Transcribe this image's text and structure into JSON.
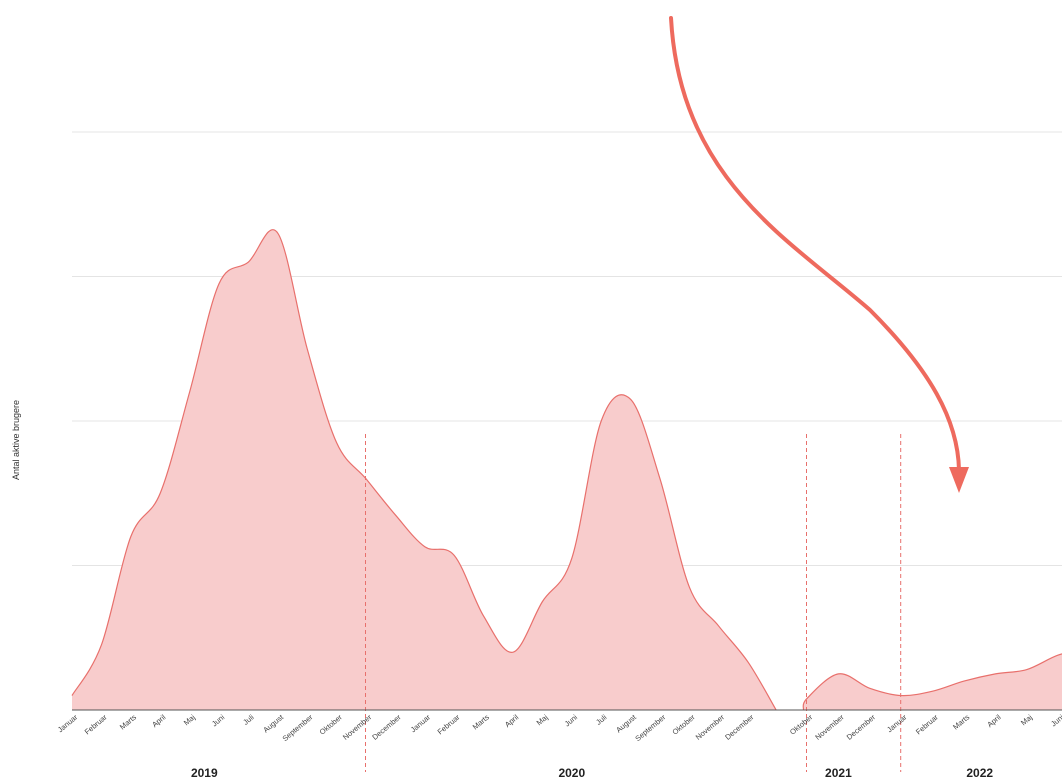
{
  "chart_data": {
    "type": "area",
    "title": "",
    "ylabel": "Antal aktive brugere",
    "xlabel": "",
    "ylim": [
      0,
      4
    ],
    "grid": true,
    "colors": {
      "fill": "#f8cccc",
      "stroke": "#e8706c",
      "arrow": "#ee6a5e",
      "divider": "#e8706c"
    },
    "month_names": [
      "Januar",
      "Februar",
      "Marts",
      "April",
      "Maj",
      "Juni",
      "Juli",
      "August",
      "September",
      "Oktober",
      "November",
      "December"
    ],
    "segments": [
      {
        "ticks": [
          "2019-01",
          "2019-02",
          "2019-03",
          "2019-04",
          "2019-05",
          "2019-06",
          "2019-07",
          "2019-08",
          "2019-09",
          "2019-10",
          "2019-11",
          "2019-12",
          "2020-01",
          "2020-02",
          "2020-03",
          "2020-04",
          "2020-05",
          "2020-06",
          "2020-07",
          "2020-08",
          "2020-09",
          "2020-10",
          "2020-11",
          "2020-12"
        ],
        "points": [
          [
            "2019-01",
            0.1
          ],
          [
            "2019-02",
            0.45
          ],
          [
            "2019-03",
            1.2
          ],
          [
            "2019-04",
            1.5
          ],
          [
            "2019-05",
            2.2
          ],
          [
            "2019-06",
            2.95
          ],
          [
            "2019-07",
            3.1
          ],
          [
            "2019-08",
            3.3
          ],
          [
            "2019-09",
            2.5
          ],
          [
            "2019-10",
            1.85
          ],
          [
            "2019-11",
            1.6
          ],
          [
            "2019-12",
            1.35
          ],
          [
            "2020-01",
            1.13
          ],
          [
            "2020-02",
            1.07
          ],
          [
            "2020-03",
            0.65
          ],
          [
            "2020-04",
            0.4
          ],
          [
            "2020-05",
            0.75
          ],
          [
            "2020-06",
            1.05
          ],
          [
            "2020-07",
            2.0
          ],
          [
            "2020-08",
            2.15
          ],
          [
            "2020-09",
            1.6
          ],
          [
            "2020-10",
            0.85
          ],
          [
            "2020-11",
            0.58
          ],
          [
            "2020-12",
            0.33
          ],
          [
            "2020-12-30",
            0.0
          ]
        ]
      },
      {
        "ticks": [
          "2021-10",
          "2021-11",
          "2021-12",
          "2022-01",
          "2022-02",
          "2022-03",
          "2022-04",
          "2022-05",
          "2022-06"
        ],
        "points": [
          [
            "2021-09-28",
            0.0
          ],
          [
            "2021-10",
            0.08
          ],
          [
            "2021-11",
            0.25
          ],
          [
            "2021-12",
            0.15
          ],
          [
            "2022-01",
            0.1
          ],
          [
            "2022-02",
            0.13
          ],
          [
            "2022-03",
            0.2
          ],
          [
            "2022-04",
            0.25
          ],
          [
            "2022-05",
            0.28
          ],
          [
            "2022-06",
            0.38
          ],
          [
            "2022-07",
            0.43
          ]
        ]
      }
    ],
    "dividers": [
      "2019-11",
      "2021-10",
      "2022-01"
    ],
    "year_labels": [
      {
        "text": "2019",
        "start": "2019-01",
        "end": "2019-10"
      },
      {
        "text": "2020",
        "start": "2019-12",
        "end": "2020-12"
      },
      {
        "text": "2021",
        "start": "2021-10",
        "end": "2021-12"
      },
      {
        "text": "2022",
        "start": "2022-01",
        "end": "2022-06"
      }
    ]
  }
}
